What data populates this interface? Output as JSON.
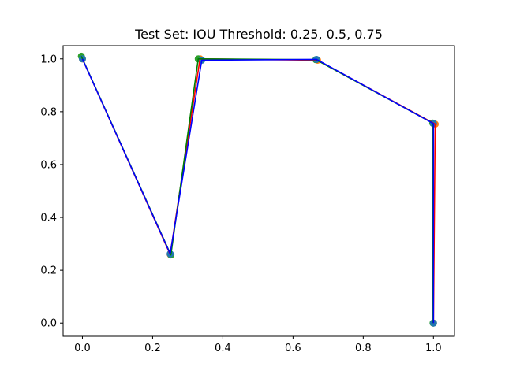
{
  "chart_data": {
    "type": "line",
    "title": "Test Set: IOU Threshold: 0.25, 0.5, 0.75",
    "xlabel": "",
    "ylabel": "",
    "xlim": [
      -0.055,
      1.06
    ],
    "ylim": [
      -0.05,
      1.05
    ],
    "xticks": [
      0.0,
      0.2,
      0.4,
      0.6,
      0.8,
      1.0
    ],
    "yticks": [
      0.0,
      0.2,
      0.4,
      0.6,
      0.8,
      1.0
    ],
    "xtick_labels": [
      "0.0",
      "0.2",
      "0.4",
      "0.6",
      "0.8",
      "1.0"
    ],
    "ytick_labels": [
      "0.0",
      "0.2",
      "0.4",
      "0.6",
      "0.8",
      "1.0"
    ],
    "grid": false,
    "series": [
      {
        "line_color": "#ff0000",
        "marker_color": "#ff7f0e",
        "x": [
          0.0,
          0.25,
          0.335,
          0.67,
          1.005,
          1.0
        ],
        "y": [
          1.0,
          0.26,
          1.0,
          0.995,
          0.753,
          0.0
        ]
      },
      {
        "line_color": "#008000",
        "marker_color": "#2ca02c",
        "x": [
          -0.003,
          0.252,
          0.33,
          0.665,
          0.998,
          0.999
        ],
        "y": [
          1.01,
          0.258,
          1.0,
          0.997,
          0.757,
          0.0
        ]
      },
      {
        "line_color": "#0000ff",
        "marker_color": "#1f77b4",
        "x": [
          0.0,
          0.25,
          0.34,
          0.667,
          1.0,
          1.0
        ],
        "y": [
          1.0,
          0.262,
          0.995,
          0.998,
          0.755,
          0.0
        ]
      }
    ]
  }
}
